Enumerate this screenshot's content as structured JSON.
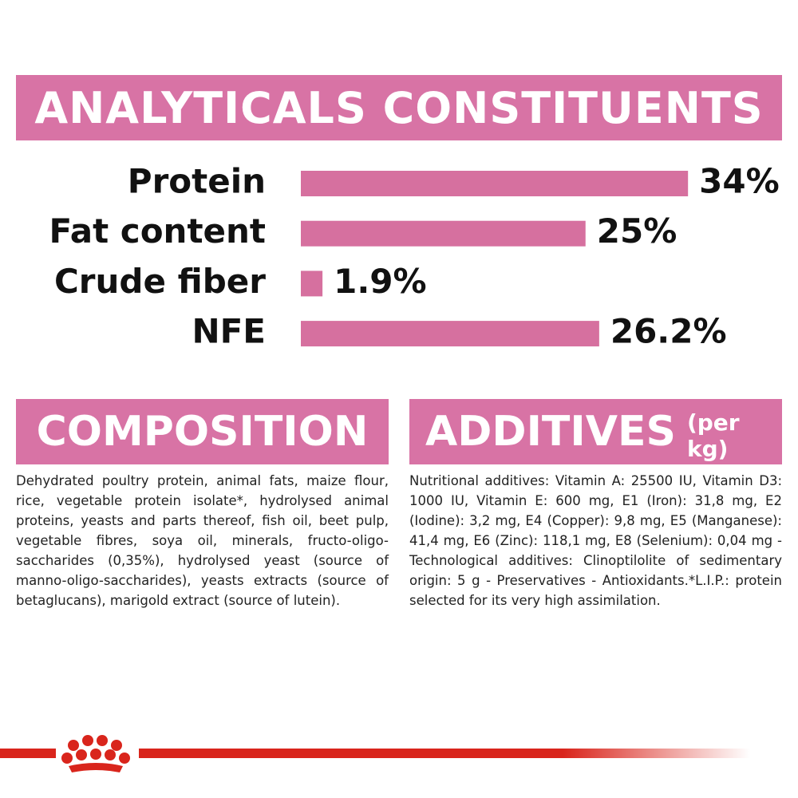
{
  "chart_data": {
    "type": "bar",
    "orientation": "horizontal",
    "title": "ANALYTICALS CONSTITUENTS",
    "categories": [
      "Protein",
      "Fat content",
      "Crude fiber",
      "NFE"
    ],
    "values": [
      34,
      25,
      1.9,
      26.2
    ],
    "value_labels": [
      "34%",
      "25%",
      "1.9%",
      "26.2%"
    ],
    "color": "#d6709f"
  },
  "composition": {
    "title": "COMPOSITION",
    "text": "Dehydrated poultry protein, animal fats, maize flour, rice, vegetable protein isolate*, hydrolysed animal proteins, yeasts and parts thereof, fish oil, beet pulp, vegetable fibres, soya oil, minerals, fructo-oligo-saccharides (0,35%), hydrolysed yeast (source of manno-oligo-saccharides), yeasts extracts (source of betaglucans), marigold extract (source of lutein)."
  },
  "additives": {
    "title": "ADDITIVES",
    "subtitle": "(per kg)",
    "text": "Nutritional additives: Vitamin A: 25500 IU, Vitamin D3: 1000 IU, Vitamin E: 600 mg, E1 (Iron): 31,8 mg, E2 (Iodine): 3,2 mg, E4 (Copper): 9,8 mg, E5 (Manganese): 41,4 mg, E6 (Zinc): 118,1 mg, E8 (Selenium): 0,04 mg - Technological additives: Clinoptilolite of sedimentary origin: 5 g - Preservatives - Antioxidants.*L.I.P.: protein selected for its very high assimilation."
  }
}
